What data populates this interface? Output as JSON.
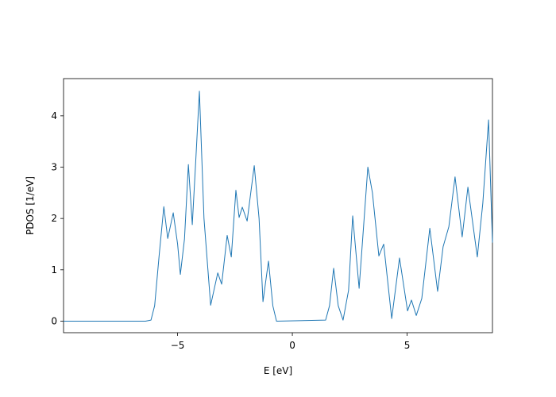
{
  "chart_data": {
    "type": "line",
    "x_label": "E [eV]",
    "y_label": "PDOS [1/eV]",
    "xlim": [
      -9.97,
      8.72
    ],
    "ylim": [
      -0.225,
      4.725
    ],
    "xticks": [
      {
        "value": -5,
        "label": "−5"
      },
      0,
      5
    ],
    "yticks": [
      0,
      1,
      2,
      3,
      4
    ],
    "grid": false,
    "series": [
      {
        "color": "#1f77b4",
        "x": [
          -9.97,
          -6.4,
          -6.16,
          -6.0,
          -5.8,
          -5.6,
          -5.43,
          -5.19,
          -5.0,
          -4.88,
          -4.7,
          -4.53,
          -4.36,
          -4.2,
          -4.05,
          -3.85,
          -3.56,
          -3.25,
          -3.08,
          -2.84,
          -2.66,
          -2.46,
          -2.32,
          -2.18,
          -1.97,
          -1.66,
          -1.45,
          -1.28,
          -1.04,
          -0.85,
          -0.69,
          1.45,
          1.62,
          1.8,
          2.0,
          2.21,
          2.45,
          2.63,
          2.91,
          3.29,
          3.49,
          3.77,
          3.98,
          4.33,
          4.67,
          5.02,
          5.19,
          5.4,
          5.64,
          5.99,
          6.33,
          6.57,
          6.82,
          7.09,
          7.4,
          7.65,
          8.06,
          8.3,
          8.55,
          8.72
        ],
        "values": [
          0,
          0,
          0.02,
          0.3,
          1.3,
          2.23,
          1.61,
          2.11,
          1.5,
          0.91,
          1.6,
          3.05,
          1.88,
          3.2,
          4.48,
          2.0,
          0.31,
          0.94,
          0.72,
          1.67,
          1.25,
          2.55,
          2.02,
          2.22,
          1.95,
          3.03,
          2.0,
          0.38,
          1.17,
          0.3,
          0,
          0.02,
          0.3,
          1.03,
          0.3,
          0.02,
          0.6,
          2.05,
          0.64,
          3.0,
          2.5,
          1.27,
          1.5,
          0.05,
          1.23,
          0.2,
          0.41,
          0.11,
          0.44,
          1.81,
          0.58,
          1.45,
          1.84,
          2.81,
          1.64,
          2.61,
          1.25,
          2.3,
          3.92,
          1.53
        ]
      }
    ]
  }
}
